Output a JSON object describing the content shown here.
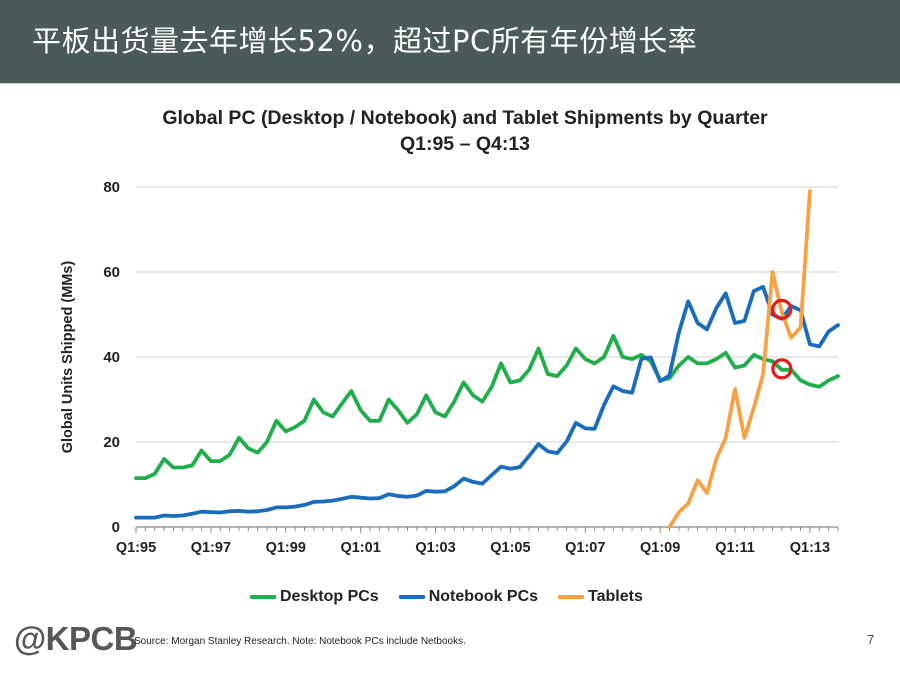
{
  "banner": {
    "title": "平板出货量去年增长52%，超过PC所有年份增长率"
  },
  "chart_data": {
    "type": "line",
    "title": "Global PC (Desktop / Notebook) and Tablet Shipments by Quarter",
    "subtitle": "Q1:95 – Q4:13",
    "ylabel": "Global Units Shipped (MMs)",
    "xlabel": "",
    "ylim": [
      0,
      80
    ],
    "yticks": [
      0,
      20,
      40,
      60,
      80
    ],
    "xticks": [
      "Q1:95",
      "Q1:97",
      "Q1:99",
      "Q1:01",
      "Q1:03",
      "Q1:05",
      "Q1:07",
      "Q1:09",
      "Q1:11",
      "Q1:13"
    ],
    "x_count": 76,
    "grid": "horizontal",
    "legend_position": "bottom",
    "series": [
      {
        "name": "Desktop PCs",
        "color": "#1fae4b",
        "start_index": 0,
        "values": [
          11.5,
          11.5,
          12.5,
          16,
          14,
          14,
          14.5,
          18,
          15.5,
          15.5,
          17,
          21,
          18.5,
          17.5,
          20,
          25,
          22.5,
          23.5,
          25,
          30,
          27,
          26,
          29,
          32,
          27.5,
          25,
          25,
          30,
          27.5,
          24.5,
          26.5,
          31,
          27,
          26,
          29.5,
          34,
          31,
          29.5,
          33,
          38.5,
          34,
          34.5,
          37,
          42,
          36,
          35.5,
          38,
          42,
          39.5,
          38.5,
          40,
          45,
          40,
          39.5,
          40.5,
          39,
          34.5,
          35,
          38,
          40,
          38.5,
          38.5,
          39.5,
          41,
          37.5,
          38,
          40.5,
          39.5,
          39,
          37,
          37,
          34.5,
          33.5,
          33,
          34.5,
          35.5
        ]
      },
      {
        "name": "Notebook PCs",
        "color": "#1a6cbd",
        "start_index": 0,
        "values": [
          2.2,
          2.2,
          2.2,
          2.7,
          2.6,
          2.7,
          3.1,
          3.6,
          3.5,
          3.4,
          3.7,
          3.8,
          3.6,
          3.7,
          4.0,
          4.6,
          4.6,
          4.8,
          5.2,
          5.9,
          6.0,
          6.2,
          6.6,
          7.1,
          6.9,
          6.7,
          6.8,
          7.7,
          7.3,
          7.1,
          7.4,
          8.5,
          8.3,
          8.4,
          9.6,
          11.4,
          10.6,
          10.2,
          12.2,
          14.2,
          13.7,
          14.1,
          16.7,
          19.5,
          17.8,
          17.4,
          20.1,
          24.5,
          23.2,
          23.1,
          28.7,
          33.1,
          32,
          31.6,
          39.6,
          39.9,
          34.3,
          35.7,
          45.8,
          53.1,
          48,
          46.5,
          51.5,
          55,
          48,
          48.5,
          55.5,
          56.5,
          50,
          49,
          52,
          51,
          43,
          42.5,
          46,
          47.5
        ]
      },
      {
        "name": "Tablets",
        "color": "#f5a245",
        "start_index": 57,
        "values": [
          0,
          3.5,
          5.5,
          11,
          8,
          16,
          21,
          32.5,
          21,
          28,
          36,
          60,
          50.5,
          44.5,
          47,
          79
        ]
      }
    ],
    "annotations": [
      {
        "type": "circle",
        "color": "#e01b1b",
        "x_index": 69,
        "y": 51.2
      },
      {
        "type": "circle",
        "color": "#e01b1b",
        "x_index": 69,
        "y": 37.2
      }
    ]
  },
  "footer": {
    "logo": "@KPCB",
    "source": "Source: Morgan Stanley Research. Note: Notebook PCs include Netbooks.",
    "page": "7"
  }
}
